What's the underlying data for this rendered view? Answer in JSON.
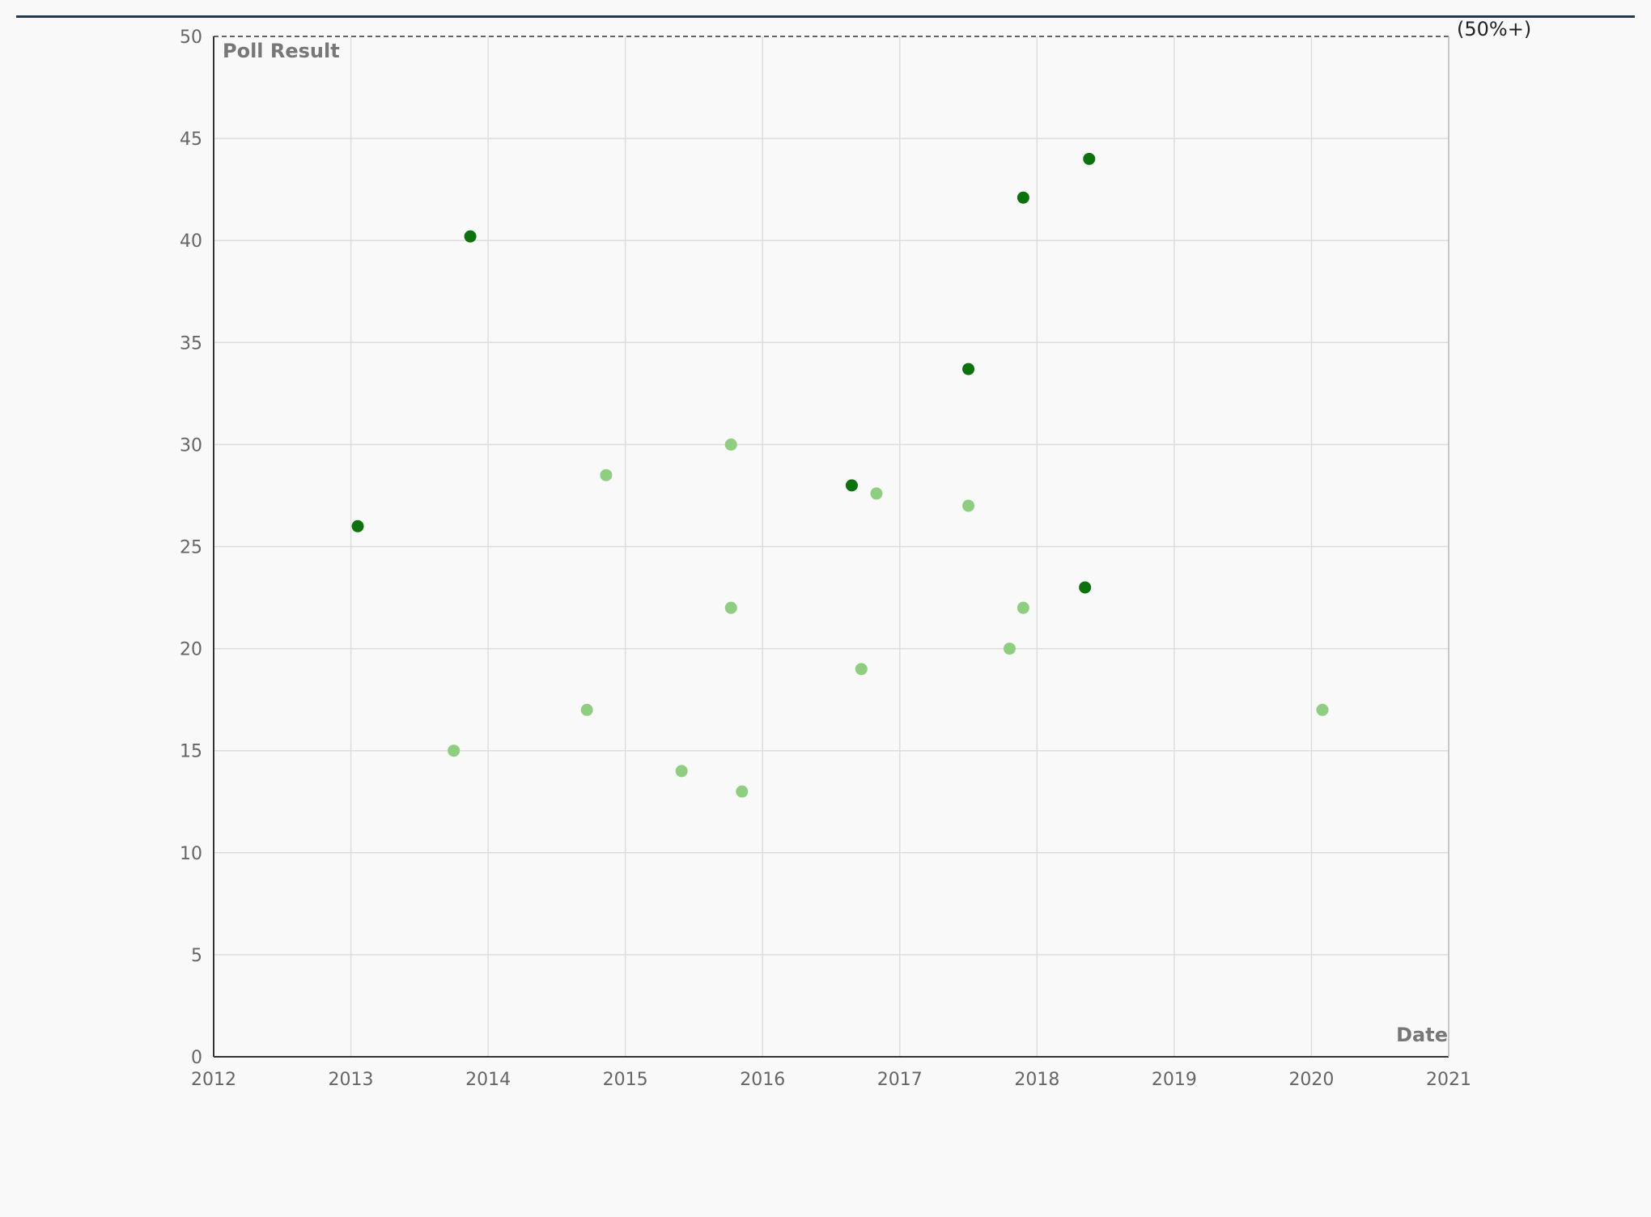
{
  "chart_data": {
    "type": "scatter",
    "title": "",
    "xlabel": "Date",
    "ylabel": "Poll Result",
    "xlim": [
      2012,
      2021
    ],
    "ylim": [
      0,
      50
    ],
    "x_ticks": [
      "2012",
      "2013",
      "2014",
      "2015",
      "2016",
      "2017",
      "2018",
      "2019",
      "2020",
      "2021"
    ],
    "y_ticks": [
      "0",
      "5",
      "10",
      "15",
      "20",
      "25",
      "30",
      "35",
      "40",
      "45",
      "50"
    ],
    "grid": true,
    "legend": "none",
    "threshold": {
      "value": 50,
      "label": "(50%+)"
    },
    "series": [
      {
        "color": "#0b730b",
        "points": [
          {
            "x": 2013.05,
            "y": 26
          },
          {
            "x": 2013.87,
            "y": 40.2
          },
          {
            "x": 2016.65,
            "y": 28
          },
          {
            "x": 2017.5,
            "y": 33.7
          },
          {
            "x": 2017.9,
            "y": 42.1
          },
          {
            "x": 2018.35,
            "y": 23
          },
          {
            "x": 2018.38,
            "y": 44
          }
        ]
      },
      {
        "color": "#8dcf7f",
        "points": [
          {
            "x": 2013.75,
            "y": 15
          },
          {
            "x": 2014.72,
            "y": 17
          },
          {
            "x": 2014.86,
            "y": 28.5
          },
          {
            "x": 2015.41,
            "y": 14
          },
          {
            "x": 2015.77,
            "y": 30
          },
          {
            "x": 2015.77,
            "y": 22
          },
          {
            "x": 2015.85,
            "y": 13
          },
          {
            "x": 2016.72,
            "y": 19
          },
          {
            "x": 2016.83,
            "y": 27.6
          },
          {
            "x": 2017.5,
            "y": 27
          },
          {
            "x": 2017.8,
            "y": 20
          },
          {
            "x": 2017.9,
            "y": 22
          },
          {
            "x": 2020.08,
            "y": 17
          }
        ]
      }
    ]
  }
}
